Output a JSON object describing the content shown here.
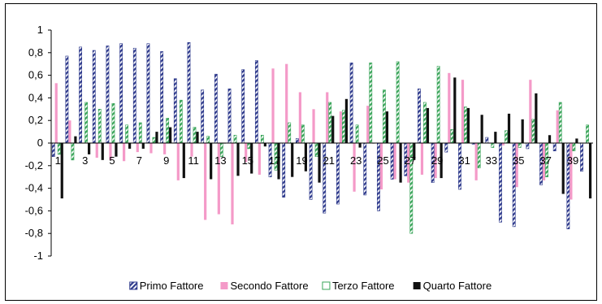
{
  "chart_data": {
    "type": "bar",
    "title": "",
    "xlabel": "",
    "ylabel": "",
    "ylim": [
      -1,
      1
    ],
    "y_ticks": [
      "1",
      "0,8",
      "0,6",
      "0,4",
      "0,2",
      "0",
      "-0,2",
      "-0,4",
      "-0,6",
      "-0,8",
      "-1"
    ],
    "y_tick_values": [
      1,
      0.8,
      0.6,
      0.4,
      0.2,
      0,
      -0.2,
      -0.4,
      -0.6,
      -0.8,
      -1
    ],
    "grid": false,
    "legend_position": "bottom",
    "categories": [
      "1",
      "2",
      "3",
      "4",
      "5",
      "6",
      "7",
      "8",
      "9",
      "10",
      "11",
      "12",
      "13",
      "14",
      "15",
      "16",
      "17",
      "18",
      "19",
      "20",
      "21",
      "22",
      "23",
      "24",
      "25",
      "26",
      "27",
      "28",
      "29",
      "30",
      "31",
      "32",
      "33",
      "34",
      "35",
      "36",
      "37",
      "38",
      "39",
      "40"
    ],
    "x_tick_labels": [
      "1",
      "3",
      "5",
      "7",
      "9",
      "11",
      "13",
      "15",
      "17",
      "19",
      "21",
      "23",
      "25",
      "27",
      "29",
      "31",
      "33",
      "35",
      "37",
      "39"
    ],
    "x_tick_label_indices": [
      0,
      2,
      4,
      6,
      8,
      10,
      12,
      14,
      16,
      18,
      20,
      22,
      24,
      26,
      28,
      30,
      32,
      34,
      36,
      38
    ],
    "series": [
      {
        "name": "Primo Fattore",
        "color": "#2e3a8c",
        "pattern": "diagonal-stripes",
        "values": [
          -0.12,
          0.77,
          0.85,
          0.82,
          0.86,
          0.88,
          0.84,
          0.88,
          0.81,
          0.57,
          0.89,
          0.47,
          0.61,
          0.48,
          0.65,
          0.73,
          -0.3,
          -0.48,
          0.04,
          -0.5,
          -0.62,
          -0.54,
          0.71,
          -0.46,
          -0.6,
          -0.32,
          -0.29,
          0.48,
          -0.35,
          -0.08,
          -0.41,
          -0.01,
          0.05,
          -0.7,
          -0.74,
          -0.05,
          -0.37,
          -0.07,
          -0.76,
          -0.25
        ]
      },
      {
        "name": "Secondo Fattore",
        "color": "#f49ac8",
        "values": [
          0.53,
          0.2,
          0.0,
          -0.13,
          -0.15,
          -0.16,
          -0.08,
          -0.09,
          -0.1,
          -0.33,
          -0.12,
          -0.68,
          -0.63,
          -0.72,
          -0.17,
          -0.28,
          0.66,
          0.7,
          0.45,
          0.3,
          0.45,
          0.28,
          -0.43,
          0.33,
          -0.41,
          -0.32,
          -0.35,
          -0.28,
          -0.31,
          0.62,
          0.56,
          -0.33,
          0.0,
          -0.02,
          -0.39,
          0.56,
          -0.33,
          0.29,
          -0.5,
          0.0
        ]
      },
      {
        "name": "Terzo Fattore",
        "color": "#3aa55a",
        "pattern": "diagonal-stripes",
        "values": [
          -0.1,
          -0.15,
          0.36,
          0.3,
          0.35,
          0.16,
          0.18,
          0.05,
          0.22,
          0.38,
          0.14,
          0.06,
          -0.12,
          0.07,
          -0.05,
          0.07,
          -0.24,
          0.18,
          0.16,
          -0.12,
          0.36,
          0.29,
          0.16,
          0.71,
          0.47,
          0.72,
          -0.8,
          0.36,
          0.68,
          0.12,
          0.32,
          -0.22,
          -0.04,
          0.11,
          -0.04,
          0.21,
          -0.3,
          0.36,
          -0.07,
          0.16
        ]
      },
      {
        "name": "Quarto Fattore",
        "color": "#111111",
        "values": [
          -0.49,
          0.06,
          -0.1,
          -0.15,
          -0.12,
          -0.05,
          -0.05,
          0.1,
          0.14,
          -0.31,
          0.1,
          -0.32,
          0.0,
          -0.29,
          -0.27,
          -0.03,
          -0.32,
          -0.3,
          -0.25,
          -0.35,
          0.24,
          0.39,
          -0.04,
          0.0,
          0.28,
          -0.35,
          -0.15,
          0.31,
          -0.31,
          0.58,
          0.31,
          0.25,
          0.1,
          0.26,
          0.21,
          0.44,
          0.07,
          -0.45,
          0.04,
          -0.49
        ]
      }
    ]
  }
}
